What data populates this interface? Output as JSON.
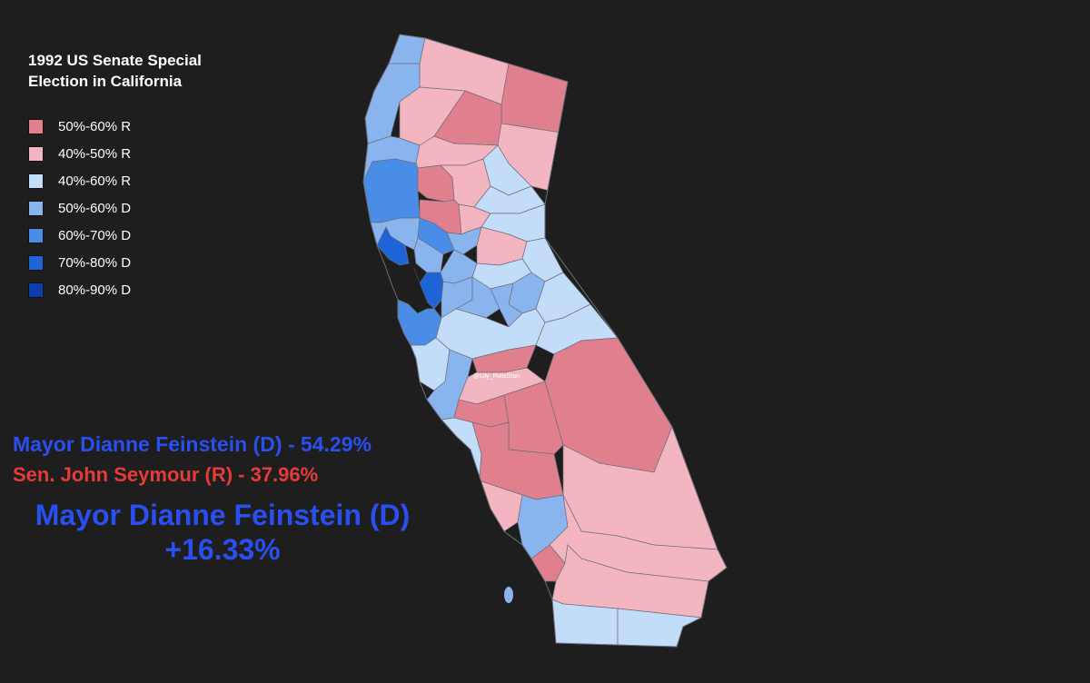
{
  "title": "1992 US Senate Special\nElection in California",
  "title_lines": [
    "1992 US Senate Special",
    "Election in California"
  ],
  "legend": [
    {
      "label": "50%-60% R",
      "color": "#e07f8e"
    },
    {
      "label": "40%-50% R",
      "color": "#f3b6c1"
    },
    {
      "label": "40%-60% R",
      "color": "#c3dcf9"
    },
    {
      "label": "50%-60% D",
      "color": "#8ab4ee"
    },
    {
      "label": "60%-70% D",
      "color": "#4a8de6"
    },
    {
      "label": "70%-80% D",
      "color": "#1e64d6"
    },
    {
      "label": "80%-90% D",
      "color": "#0b3fae"
    }
  ],
  "results": {
    "dem_line": "Mayor Dianne Feinstein (D) - 54.29%",
    "rep_line": "Sen. John Seymour (R) - 37.96%",
    "winner_name": "Mayor Dianne Feinstein (D)",
    "winner_margin": "+16.33%",
    "dem_color": "#2a4ff0",
    "rep_color": "#e53b3b"
  },
  "watermark": "@Lily_PolisStan",
  "colors": {
    "background": "#1e1e1e",
    "border": "#6b6f7a"
  }
}
